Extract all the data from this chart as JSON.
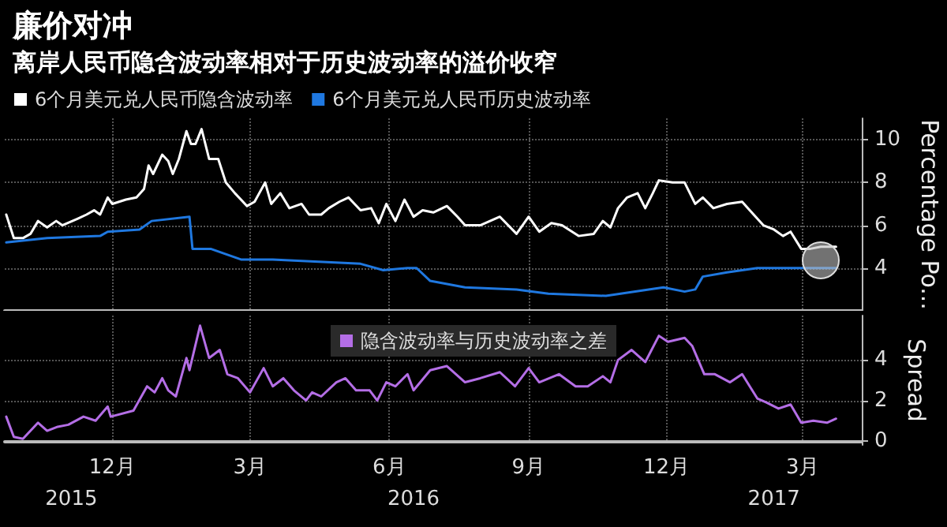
{
  "chart_data": [
    {
      "type": "line",
      "title": "廉价对冲",
      "subtitle": "离岸人民币隐含波动率相对于历史波动率的溢价收窄",
      "ylabel": "Percentage Po...",
      "xlim": [
        "2015-10-06",
        "2017-04-24"
      ],
      "xticks": [
        {
          "value": "2015-12-16",
          "label": null
        },
        {
          "value": "2016-03-16",
          "label": null
        },
        {
          "value": "2016-06-16",
          "label": null
        },
        {
          "value": "2016-09-16",
          "label": null
        },
        {
          "value": "2016-12-16",
          "label": null
        },
        {
          "value": "2017-03-16",
          "label": null
        }
      ],
      "ylim": [
        2,
        11
      ],
      "yticks": [
        4,
        6,
        8,
        10
      ],
      "tick_labels": "y",
      "grid": true,
      "legend": "top left",
      "series": [
        {
          "name": "6个月美元兑人民币隐含波动率",
          "color": "#ffffff",
          "x": [
            "2015-10-07",
            "2015-10-12",
            "2015-10-18",
            "2015-10-23",
            "2015-10-28",
            "2015-11-03",
            "2015-11-09",
            "2015-11-13",
            "2015-11-23",
            "2015-11-29",
            "2015-12-04",
            "2015-12-08",
            "2015-12-13",
            "2015-12-16",
            "2015-12-25",
            "2016-01-01",
            "2016-01-06",
            "2016-01-09",
            "2016-01-12",
            "2016-01-18",
            "2016-01-22",
            "2016-01-25",
            "2016-01-29",
            "2016-02-03",
            "2016-02-06",
            "2016-02-09",
            "2016-02-13",
            "2016-02-18",
            "2016-02-24",
            "2016-02-29",
            "2016-03-06",
            "2016-03-14",
            "2016-03-19",
            "2016-03-26",
            "2016-03-30",
            "2016-04-05",
            "2016-04-11",
            "2016-04-19",
            "2016-04-24",
            "2016-05-02",
            "2016-05-07",
            "2016-05-14",
            "2016-05-20",
            "2016-05-28",
            "2016-06-04",
            "2016-06-09",
            "2016-06-14",
            "2016-06-20",
            "2016-06-26",
            "2016-07-02",
            "2016-07-08",
            "2016-07-15",
            "2016-07-24",
            "2016-07-31",
            "2016-08-05",
            "2016-08-15",
            "2016-08-28",
            "2016-09-08",
            "2016-09-16",
            "2016-09-23",
            "2016-10-01",
            "2016-10-08",
            "2016-10-19",
            "2016-10-29",
            "2016-11-04",
            "2016-11-09",
            "2016-11-14",
            "2016-11-20",
            "2016-11-27",
            "2016-12-02",
            "2016-12-07",
            "2016-12-11",
            "2016-12-20",
            "2016-12-28",
            "2017-01-04",
            "2017-01-09",
            "2017-01-16",
            "2017-01-25",
            "2017-02-04",
            "2017-02-09",
            "2017-02-18",
            "2017-02-25",
            "2017-03-03",
            "2017-03-08",
            "2017-03-15",
            "2017-03-21",
            "2017-03-28",
            "2017-04-07"
          ],
          "values": [
            6.5,
            5.4,
            5.4,
            5.6,
            6.2,
            5.9,
            6.2,
            6.0,
            6.3,
            6.5,
            6.7,
            6.5,
            7.3,
            7.0,
            7.2,
            7.3,
            7.7,
            8.8,
            8.4,
            9.3,
            9.0,
            8.4,
            9.1,
            10.4,
            9.8,
            9.8,
            10.5,
            9.1,
            9.1,
            8.0,
            7.5,
            6.9,
            7.1,
            8.0,
            7.0,
            7.5,
            6.8,
            7.0,
            6.5,
            6.5,
            6.8,
            7.1,
            7.3,
            6.7,
            6.8,
            6.1,
            7.0,
            6.2,
            7.2,
            6.4,
            6.7,
            6.6,
            6.9,
            6.4,
            6.0,
            6.0,
            6.4,
            5.6,
            6.4,
            5.7,
            6.1,
            6.0,
            5.5,
            5.6,
            6.2,
            5.9,
            6.8,
            7.3,
            7.5,
            6.8,
            7.5,
            8.1,
            8.0,
            8.0,
            7.0,
            7.3,
            6.8,
            7.0,
            7.1,
            6.7,
            6.0,
            5.8,
            5.5,
            5.7,
            4.9,
            4.9,
            5.0,
            5.0
          ]
        },
        {
          "name": "6个月美元兑人民币历史波动率",
          "color": "#1f78e0",
          "x": [
            "2015-10-07",
            "2015-11-03",
            "2015-12-08",
            "2015-12-13",
            "2016-01-03",
            "2016-01-11",
            "2016-02-05",
            "2016-02-07",
            "2016-02-19",
            "2016-03-10",
            "2016-03-31",
            "2016-05-28",
            "2016-06-12",
            "2016-06-28",
            "2016-07-04",
            "2016-07-13",
            "2016-08-05",
            "2016-09-08",
            "2016-09-29",
            "2016-11-06",
            "2016-12-14",
            "2016-12-28",
            "2017-01-04",
            "2017-01-09",
            "2017-01-25",
            "2017-02-14",
            "2017-03-12",
            "2017-04-07"
          ],
          "values": [
            5.2,
            5.4,
            5.5,
            5.7,
            5.8,
            6.2,
            6.4,
            4.9,
            4.9,
            4.4,
            4.4,
            4.2,
            3.9,
            4.0,
            4.0,
            3.4,
            3.1,
            3.0,
            2.8,
            2.7,
            3.1,
            2.9,
            3.0,
            3.6,
            3.8,
            4.0,
            4.0,
            4.0
          ]
        }
      ]
    },
    {
      "type": "line",
      "ylabel": "Spread",
      "xlim": [
        "2015-10-06",
        "2017-04-24"
      ],
      "xticks": [
        {
          "value": "2015-12-16",
          "label": "12月"
        },
        {
          "value": "2016-03-16",
          "label": "3月"
        },
        {
          "value": "2016-06-16",
          "label": "6月"
        },
        {
          "value": "2016-09-16",
          "label": "9月"
        },
        {
          "value": "2016-12-16",
          "label": "12月"
        },
        {
          "value": "2017-03-16",
          "label": "3月"
        }
      ],
      "x2lim": [
        "2015-10-06",
        "2017-04-24"
      ],
      "x2ticks": [
        {
          "value": "2015-11-19",
          "label": "2015"
        },
        {
          "value": "2016-07-02",
          "label": "2016"
        },
        {
          "value": "2017-02-25",
          "label": "2017"
        }
      ],
      "ylim": [
        -0.2,
        6.2
      ],
      "yticks": [
        0,
        2,
        4
      ],
      "grid": true,
      "legend": "top",
      "series": [
        {
          "name": "隐含波动率与历史波动率之差",
          "color": "#b46ee6",
          "x": [
            "2015-10-07",
            "2015-10-12",
            "2015-10-18",
            "2015-10-28",
            "2015-11-03",
            "2015-11-10",
            "2015-11-17",
            "2015-11-27",
            "2015-12-05",
            "2015-12-13",
            "2015-12-15",
            "2015-12-30",
            "2016-01-08",
            "2016-01-13",
            "2016-01-18",
            "2016-01-22",
            "2016-01-27",
            "2016-02-03",
            "2016-02-05",
            "2016-02-12",
            "2016-02-18",
            "2016-02-25",
            "2016-03-01",
            "2016-03-08",
            "2016-03-16",
            "2016-03-25",
            "2016-03-31",
            "2016-04-07",
            "2016-04-14",
            "2016-04-22",
            "2016-04-26",
            "2016-05-02",
            "2016-05-12",
            "2016-05-18",
            "2016-05-25",
            "2016-06-03",
            "2016-06-08",
            "2016-06-14",
            "2016-06-20",
            "2016-06-28",
            "2016-07-02",
            "2016-07-13",
            "2016-07-24",
            "2016-08-05",
            "2016-08-15",
            "2016-08-28",
            "2016-09-07",
            "2016-09-16",
            "2016-09-23",
            "2016-10-06",
            "2016-10-17",
            "2016-10-25",
            "2016-11-04",
            "2016-11-09",
            "2016-11-14",
            "2016-11-23",
            "2016-12-02",
            "2016-12-11",
            "2016-12-17",
            "2016-12-28",
            "2017-01-02",
            "2017-01-10",
            "2017-01-17",
            "2017-01-27",
            "2017-02-04",
            "2017-02-14",
            "2017-02-20",
            "2017-02-28",
            "2017-03-08",
            "2017-03-15",
            "2017-03-23",
            "2017-04-01",
            "2017-04-07"
          ],
          "values": [
            1.2,
            0.2,
            0.1,
            0.9,
            0.5,
            0.7,
            0.8,
            1.2,
            1.0,
            1.7,
            1.2,
            1.5,
            2.7,
            2.4,
            3.1,
            2.5,
            2.2,
            4.1,
            3.5,
            5.7,
            4.1,
            4.5,
            3.3,
            3.1,
            2.4,
            3.6,
            2.7,
            3.1,
            2.5,
            2.0,
            2.4,
            2.2,
            2.9,
            3.1,
            2.5,
            2.5,
            2.0,
            2.9,
            2.7,
            3.3,
            2.5,
            3.5,
            3.7,
            2.9,
            3.1,
            3.4,
            2.7,
            3.6,
            2.9,
            3.3,
            2.7,
            2.7,
            3.2,
            2.9,
            4.0,
            4.5,
            3.9,
            5.2,
            4.9,
            5.1,
            4.7,
            3.3,
            3.3,
            2.9,
            3.3,
            2.1,
            1.9,
            1.6,
            1.8,
            0.9,
            1.0,
            0.9,
            1.1
          ]
        }
      ]
    }
  ]
}
